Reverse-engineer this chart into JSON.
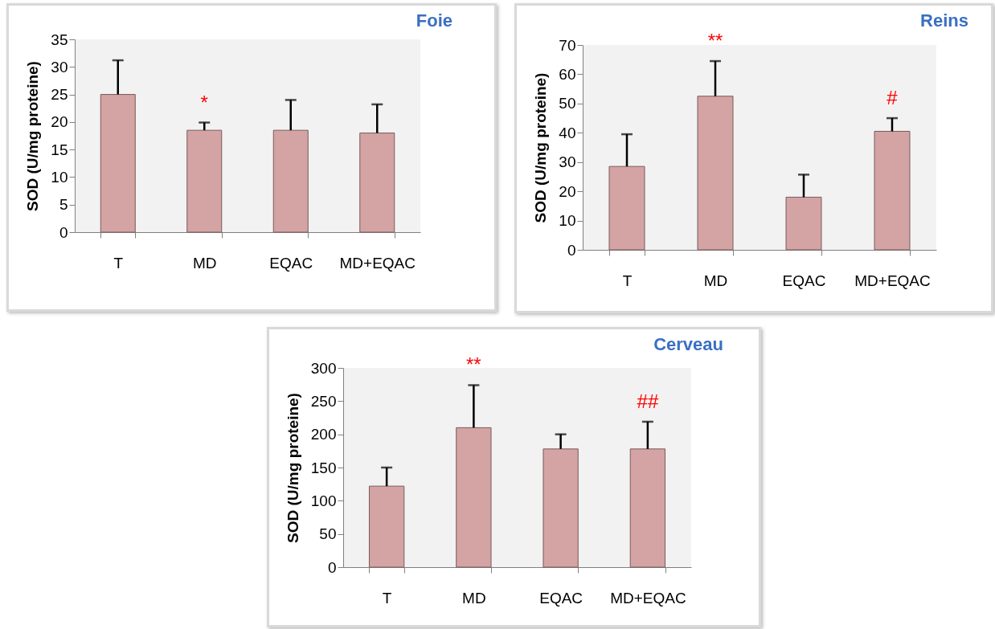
{
  "chart_data": [
    {
      "type": "bar",
      "title": "Foie",
      "ylabel": "SOD (U/mg proteine)",
      "categories": [
        "T",
        "MD",
        "EQAC",
        "MD+EQAC"
      ],
      "values": [
        25,
        18.5,
        18.5,
        18
      ],
      "errors": [
        [
          25,
          31.2
        ],
        [
          18.5,
          19.9
        ],
        [
          18.5,
          24
        ],
        [
          18,
          23.2
        ]
      ],
      "color": "#d4a3a3",
      "ylim": [
        0,
        35
      ],
      "yticks": [
        0,
        5,
        10,
        15,
        20,
        25,
        30,
        35
      ],
      "annotations": [
        {
          "text": "*",
          "x": "MD",
          "y": 19.9
        }
      ]
    },
    {
      "type": "bar",
      "title": "Reins",
      "ylabel": "SOD (U/mg proteine)",
      "categories": [
        "T",
        "MD",
        "EQAC",
        "MD+EQAC"
      ],
      "values": [
        28.5,
        52.5,
        18,
        40.5
      ],
      "errors": [
        [
          28.5,
          39.5
        ],
        [
          52.5,
          64.5
        ],
        [
          18,
          25.7
        ],
        [
          40.5,
          45
        ]
      ],
      "color": "#d4a3a3",
      "ylim": [
        0,
        70
      ],
      "yticks": [
        0,
        10,
        20,
        30,
        40,
        50,
        60,
        70
      ],
      "annotations": [
        {
          "text": "**",
          "x": "MD",
          "y": 64.5
        },
        {
          "text": "#",
          "x": "MD+EQAC",
          "y": 45
        }
      ]
    },
    {
      "type": "bar",
      "title": "Cerveau",
      "ylabel": "SOD (U/mg proteine)",
      "categories": [
        "T",
        "MD",
        "EQAC",
        "MD+EQAC"
      ],
      "values": [
        122,
        210,
        178,
        178
      ],
      "errors": [
        [
          122,
          150
        ],
        [
          210,
          274
        ],
        [
          178,
          200
        ],
        [
          178,
          219
        ]
      ],
      "color": "#d4a3a3",
      "ylim": [
        0,
        300
      ],
      "yticks": [
        0,
        50,
        100,
        150,
        200,
        250,
        300
      ],
      "annotations": [
        {
          "text": "**",
          "x": "MD",
          "y": 274
        },
        {
          "text": "##",
          "x": "MD+EQAC",
          "y": 219
        }
      ]
    }
  ]
}
